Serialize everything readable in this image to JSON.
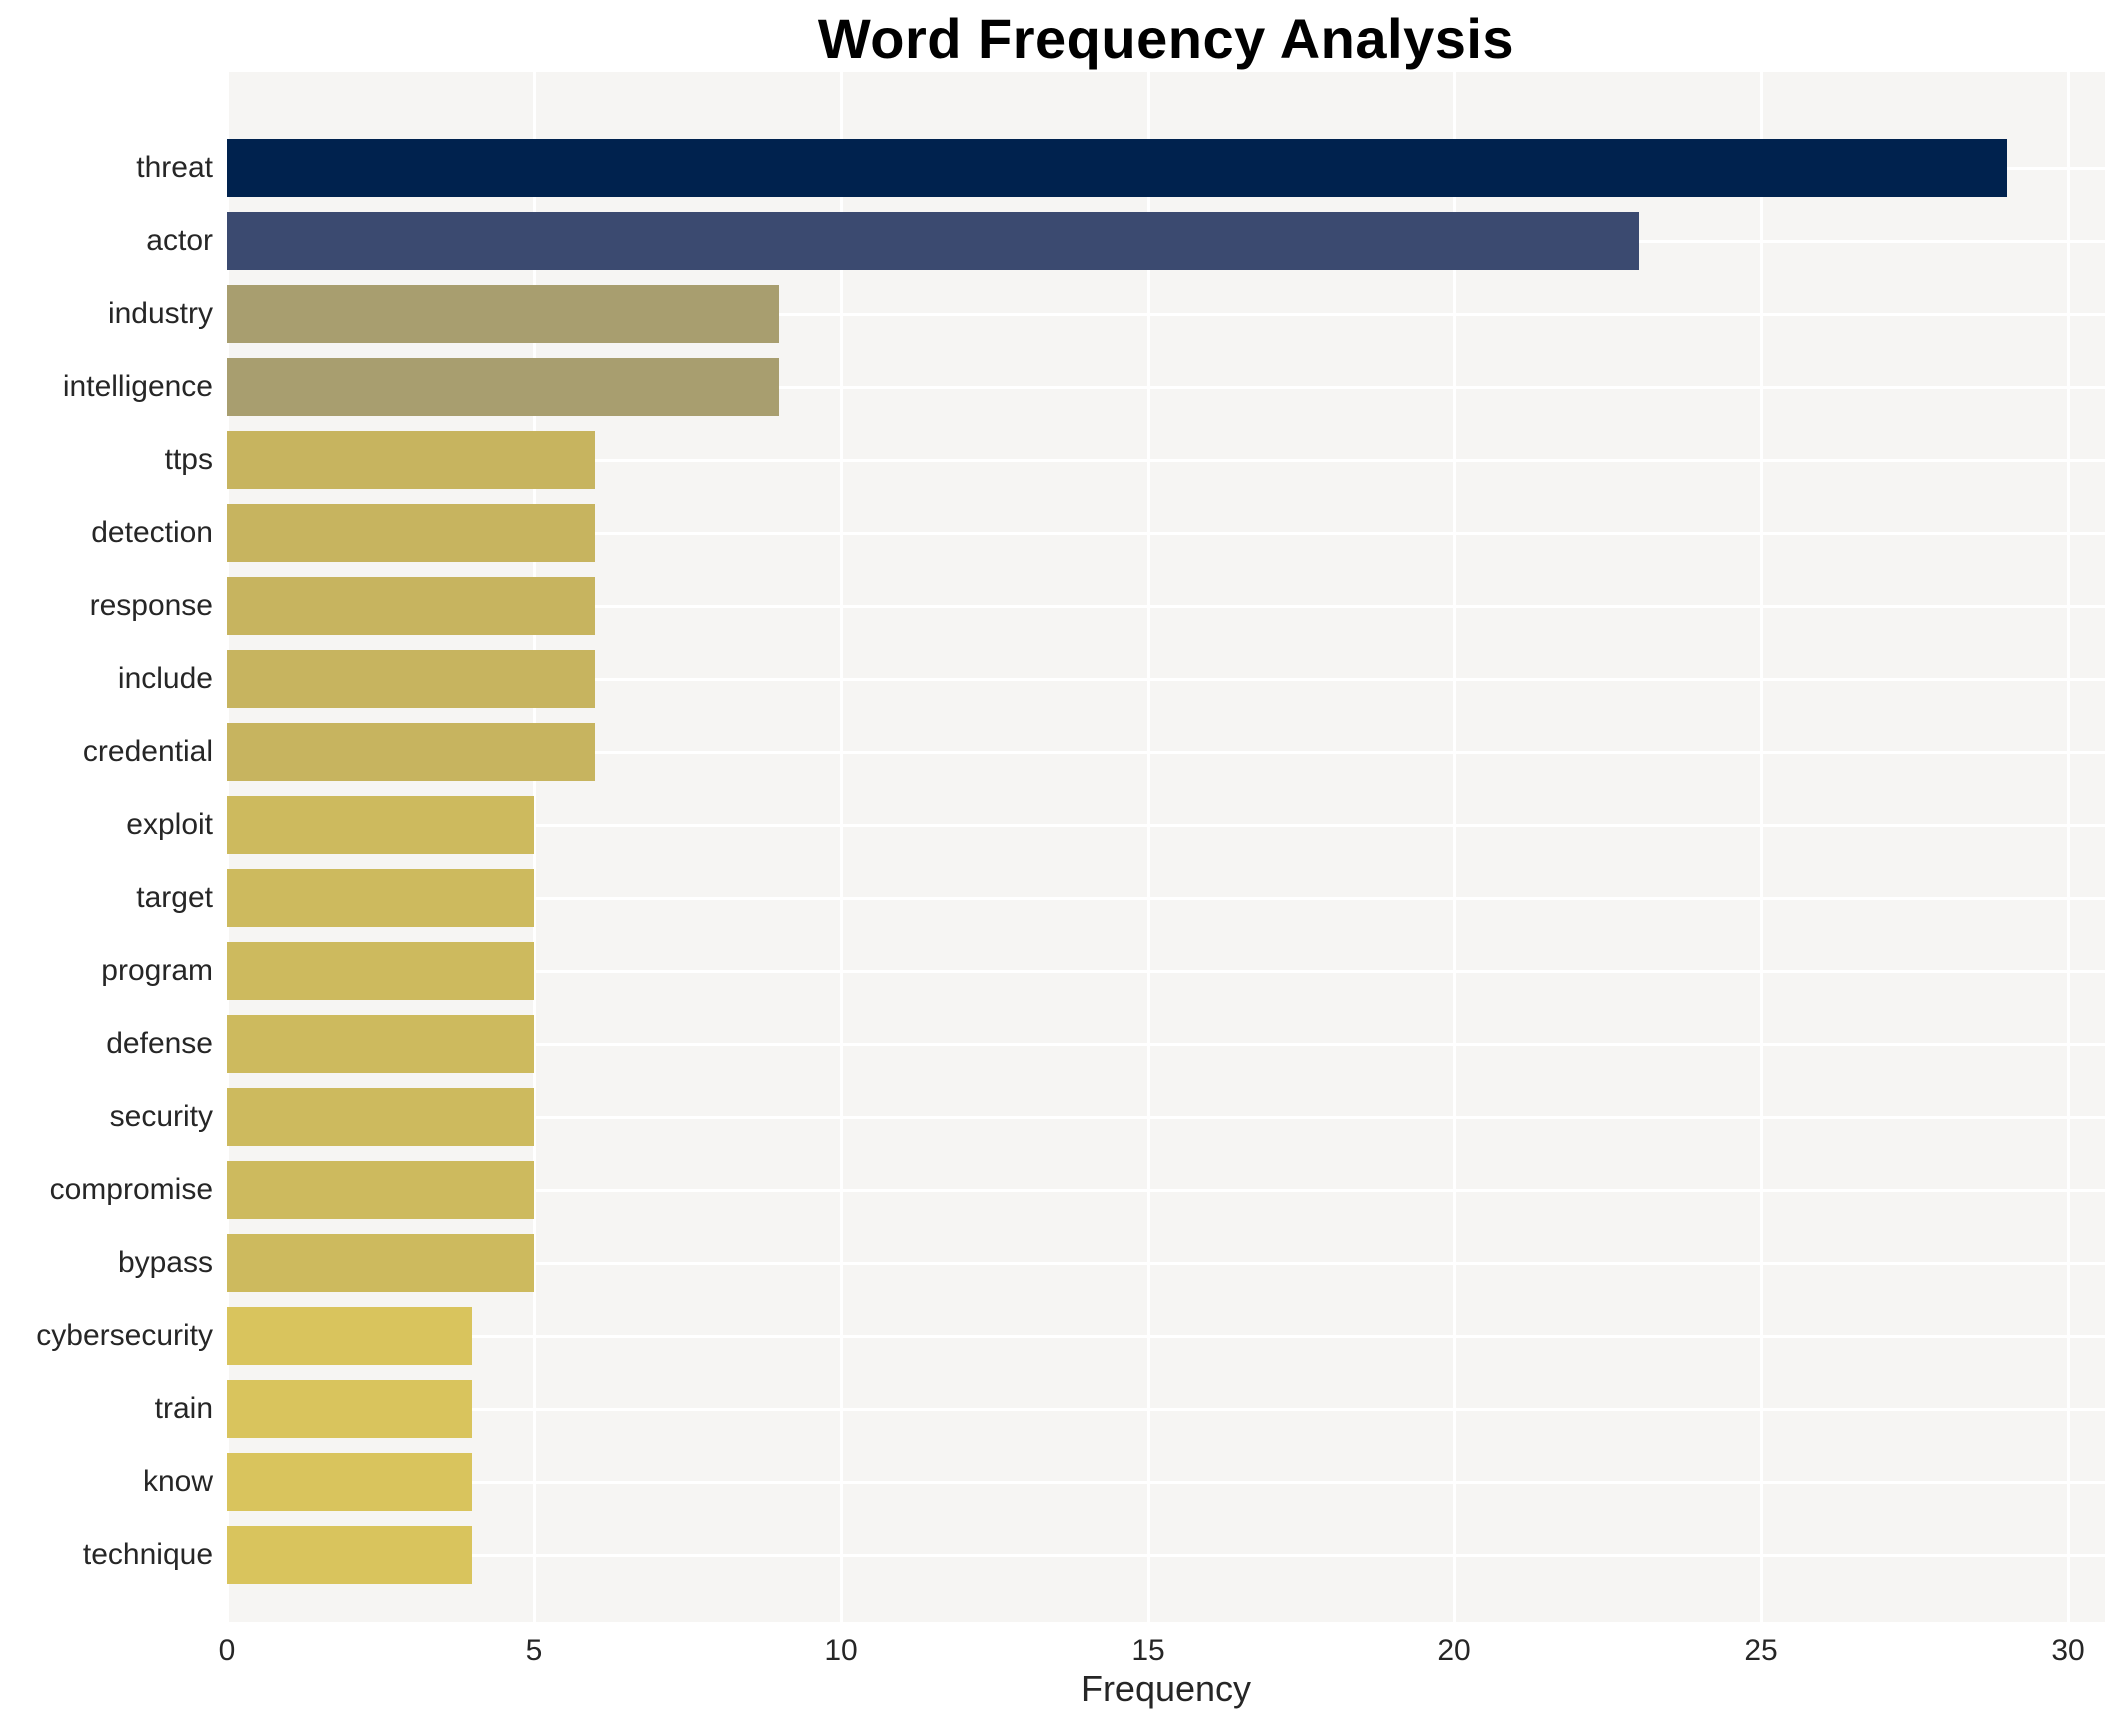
{
  "title": "Word Frequency Analysis",
  "chart_data": {
    "type": "bar",
    "orientation": "horizontal",
    "title": "Word Frequency Analysis",
    "xlabel": "Frequency",
    "ylabel": "",
    "categories": [
      "threat",
      "actor",
      "industry",
      "intelligence",
      "ttps",
      "detection",
      "response",
      "include",
      "credential",
      "exploit",
      "target",
      "program",
      "defense",
      "security",
      "compromise",
      "bypass",
      "cybersecurity",
      "train",
      "know",
      "technique"
    ],
    "values": [
      29,
      23,
      9,
      9,
      6,
      6,
      6,
      6,
      6,
      5,
      5,
      5,
      5,
      5,
      5,
      5,
      4,
      4,
      4,
      4
    ],
    "bar_colors": [
      "#00224e",
      "#3b4a70",
      "#a89e6f",
      "#a89e6f",
      "#c7b45f",
      "#c7b45f",
      "#c7b45f",
      "#c7b45f",
      "#c7b45f",
      "#cdba5e",
      "#cdba5e",
      "#cdba5e",
      "#cdba5e",
      "#cdba5e",
      "#cdba5e",
      "#cdba5e",
      "#d9c45d",
      "#d9c45d",
      "#d9c45d",
      "#d9c45d"
    ],
    "xlim": [
      0,
      30.6
    ],
    "xticks": [
      0,
      5,
      10,
      15,
      20,
      25,
      30
    ],
    "grid": true,
    "legend": "none",
    "colormap": "cividis-reversed-by-value",
    "plot_bg": "#f6f5f3",
    "grid_color": "#ffffff",
    "text_color": "#262626",
    "title_color": "#000000"
  }
}
